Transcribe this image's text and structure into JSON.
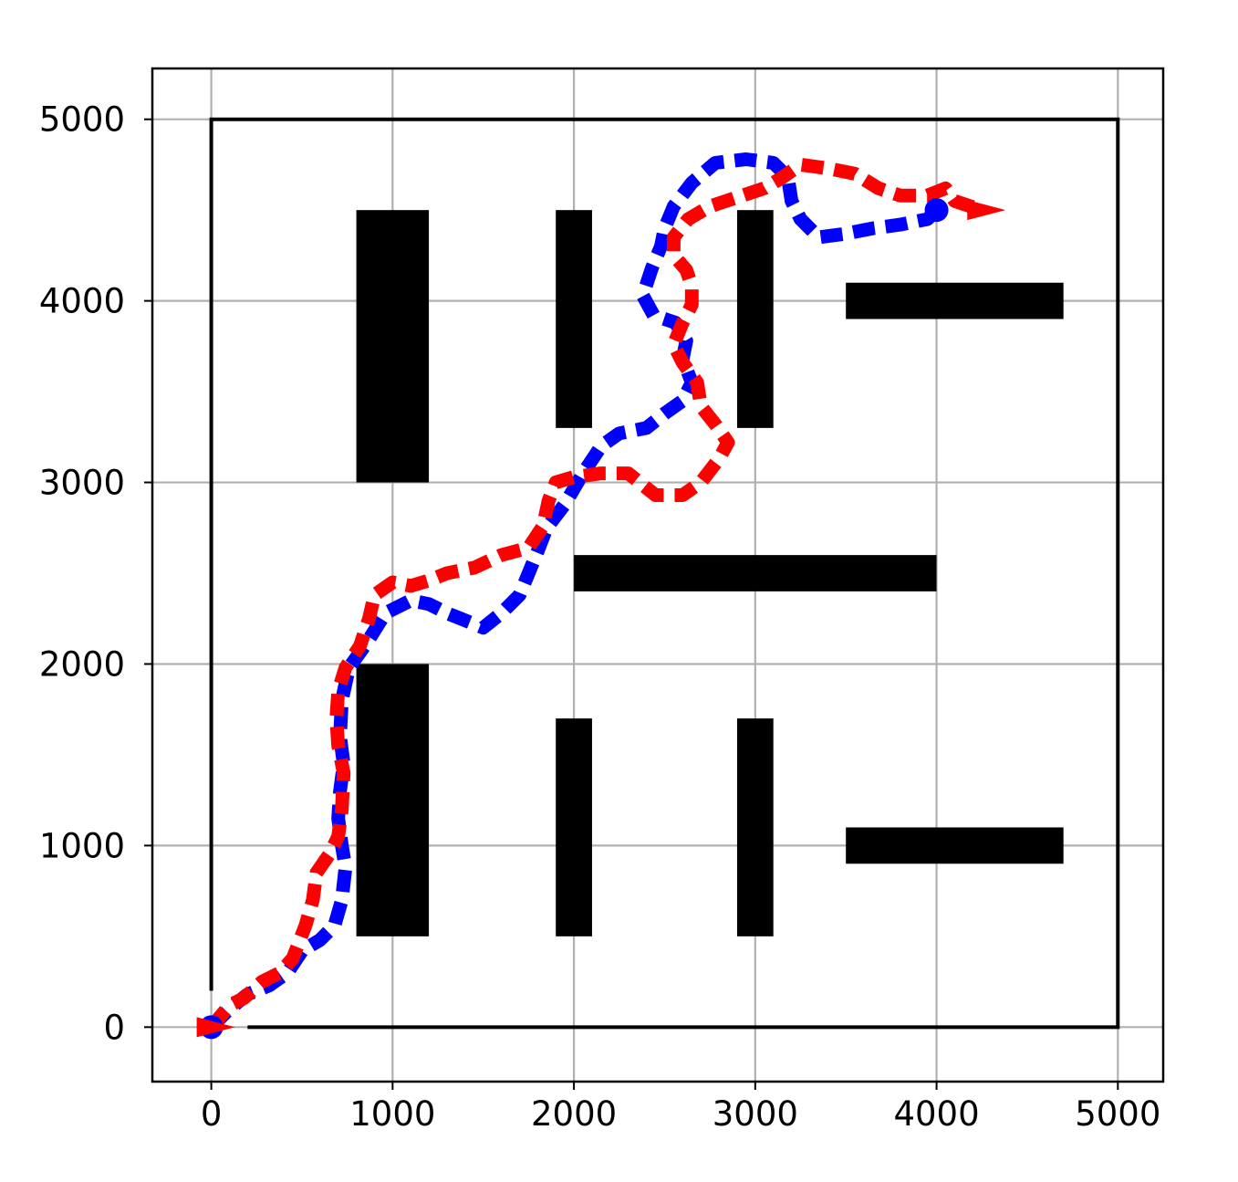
{
  "chart_data": {
    "type": "line",
    "title": "",
    "xlabel": "",
    "ylabel": "",
    "xlim": [
      -325,
      5250
    ],
    "ylim": [
      -300,
      5280
    ],
    "grid": true,
    "x_ticks": [
      0,
      1000,
      2000,
      3000,
      4000,
      5000
    ],
    "y_ticks": [
      0,
      1000,
      2000,
      3000,
      4000,
      5000
    ],
    "x_tick_labels": [
      "0",
      "1000",
      "2000",
      "3000",
      "4000",
      "5000"
    ],
    "y_tick_labels": [
      "0",
      "1000",
      "2000",
      "3000",
      "4000",
      "5000"
    ],
    "boundary": [
      [
        0,
        200
      ],
      [
        0,
        5000
      ],
      [
        5000,
        5000
      ],
      [
        5000,
        0
      ],
      [
        200,
        0
      ]
    ],
    "obstacles": [
      {
        "x0": 800,
        "x1": 1200,
        "y0": 3000,
        "y1": 4500
      },
      {
        "x0": 1900,
        "x1": 2100,
        "y0": 3300,
        "y1": 4500
      },
      {
        "x0": 2900,
        "x1": 3100,
        "y0": 3300,
        "y1": 4500
      },
      {
        "x0": 3500,
        "x1": 4700,
        "y0": 3900,
        "y1": 4100
      },
      {
        "x0": 2000,
        "x1": 4000,
        "y0": 2400,
        "y1": 2600
      },
      {
        "x0": 800,
        "x1": 1200,
        "y0": 500,
        "y1": 2000
      },
      {
        "x0": 1900,
        "x1": 2100,
        "y0": 500,
        "y1": 1700
      },
      {
        "x0": 2900,
        "x1": 3100,
        "y0": 500,
        "y1": 1700
      },
      {
        "x0": 3500,
        "x1": 4700,
        "y0": 900,
        "y1": 1100
      }
    ],
    "series": [
      {
        "color": "#0000ff",
        "marker": "circle",
        "points": [
          [
            0,
            0
          ],
          [
            100,
            100
          ],
          [
            200,
            180
          ],
          [
            320,
            230
          ],
          [
            420,
            300
          ],
          [
            500,
            420
          ],
          [
            600,
            480
          ],
          [
            680,
            560
          ],
          [
            720,
            700
          ],
          [
            740,
            880
          ],
          [
            720,
            1000
          ],
          [
            700,
            1150
          ],
          [
            710,
            1300
          ],
          [
            730,
            1450
          ],
          [
            710,
            1600
          ],
          [
            720,
            1800
          ],
          [
            760,
            1980
          ],
          [
            860,
            2120
          ],
          [
            960,
            2280
          ],
          [
            1100,
            2350
          ],
          [
            1200,
            2330
          ],
          [
            1300,
            2280
          ],
          [
            1400,
            2240
          ],
          [
            1500,
            2200
          ],
          [
            1600,
            2280
          ],
          [
            1700,
            2380
          ],
          [
            1750,
            2500
          ],
          [
            1800,
            2620
          ],
          [
            1850,
            2750
          ],
          [
            1950,
            2880
          ],
          [
            2050,
            3050
          ],
          [
            2150,
            3200
          ],
          [
            2250,
            3270
          ],
          [
            2400,
            3300
          ],
          [
            2500,
            3380
          ],
          [
            2600,
            3450
          ],
          [
            2650,
            3550
          ],
          [
            2600,
            3680
          ],
          [
            2620,
            3780
          ],
          [
            2560,
            3880
          ],
          [
            2440,
            3920
          ],
          [
            2380,
            4030
          ],
          [
            2430,
            4180
          ],
          [
            2480,
            4300
          ],
          [
            2500,
            4400
          ],
          [
            2550,
            4520
          ],
          [
            2650,
            4650
          ],
          [
            2780,
            4760
          ],
          [
            2950,
            4780
          ],
          [
            3100,
            4760
          ],
          [
            3180,
            4680
          ],
          [
            3200,
            4550
          ],
          [
            3250,
            4450
          ],
          [
            3350,
            4350
          ],
          [
            3500,
            4370
          ],
          [
            3650,
            4400
          ],
          [
            3800,
            4420
          ],
          [
            3950,
            4450
          ],
          [
            4000,
            4500
          ]
        ]
      },
      {
        "color": "#ff0000",
        "marker": "triangle",
        "points": [
          [
            0,
            0
          ],
          [
            100,
            120
          ],
          [
            180,
            160
          ],
          [
            280,
            250
          ],
          [
            380,
            300
          ],
          [
            450,
            380
          ],
          [
            520,
            560
          ],
          [
            560,
            700
          ],
          [
            580,
            850
          ],
          [
            650,
            950
          ],
          [
            700,
            1050
          ],
          [
            720,
            1200
          ],
          [
            730,
            1400
          ],
          [
            700,
            1550
          ],
          [
            690,
            1700
          ],
          [
            700,
            1850
          ],
          [
            740,
            1980
          ],
          [
            820,
            2100
          ],
          [
            870,
            2250
          ],
          [
            900,
            2380
          ],
          [
            1000,
            2450
          ],
          [
            1100,
            2430
          ],
          [
            1200,
            2460
          ],
          [
            1300,
            2500
          ],
          [
            1450,
            2530
          ],
          [
            1600,
            2600
          ],
          [
            1750,
            2640
          ],
          [
            1830,
            2760
          ],
          [
            1860,
            2900
          ],
          [
            1900,
            3000
          ],
          [
            2000,
            3030
          ],
          [
            2150,
            3050
          ],
          [
            2300,
            3050
          ],
          [
            2450,
            2930
          ],
          [
            2600,
            2930
          ],
          [
            2700,
            3000
          ],
          [
            2800,
            3130
          ],
          [
            2850,
            3220
          ],
          [
            2780,
            3320
          ],
          [
            2700,
            3420
          ],
          [
            2680,
            3550
          ],
          [
            2600,
            3660
          ],
          [
            2550,
            3760
          ],
          [
            2600,
            3880
          ],
          [
            2650,
            3980
          ],
          [
            2650,
            4080
          ],
          [
            2620,
            4170
          ],
          [
            2550,
            4250
          ],
          [
            2550,
            4350
          ],
          [
            2630,
            4450
          ],
          [
            2750,
            4520
          ],
          [
            2900,
            4570
          ],
          [
            3050,
            4620
          ],
          [
            3150,
            4680
          ],
          [
            3250,
            4750
          ],
          [
            3400,
            4730
          ],
          [
            3550,
            4700
          ],
          [
            3680,
            4620
          ],
          [
            3800,
            4580
          ],
          [
            3950,
            4580
          ],
          [
            4050,
            4620
          ],
          [
            4100,
            4550
          ],
          [
            4250,
            4500
          ]
        ]
      }
    ]
  }
}
